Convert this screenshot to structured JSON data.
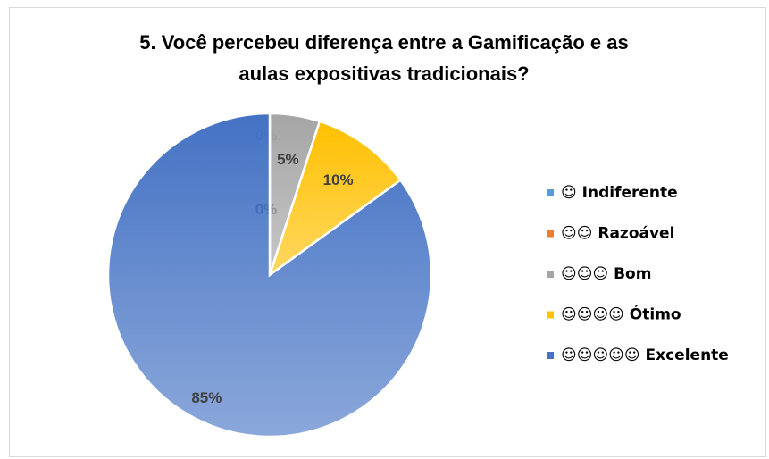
{
  "chart_data": {
    "type": "pie",
    "title": "5. Você percebeu diferença entre a Gamificação e as aulas expositivas tradicionais?",
    "categories": [
      "☺ Indiferente",
      "☺☺ Razoável",
      "☺☺☺ Bom",
      "☺☺☺☺ Ótimo",
      "☺☺☺☺☺ Excelente"
    ],
    "values": [
      0,
      0,
      5,
      10,
      85
    ],
    "value_labels": [
      "0%",
      "0%",
      "5%",
      "10%",
      "85%"
    ],
    "colors": [
      "#5b9bd5",
      "#ed7d31",
      "#a5a5a5",
      "#ffc000",
      "#4472c4"
    ],
    "legend": "right"
  }
}
